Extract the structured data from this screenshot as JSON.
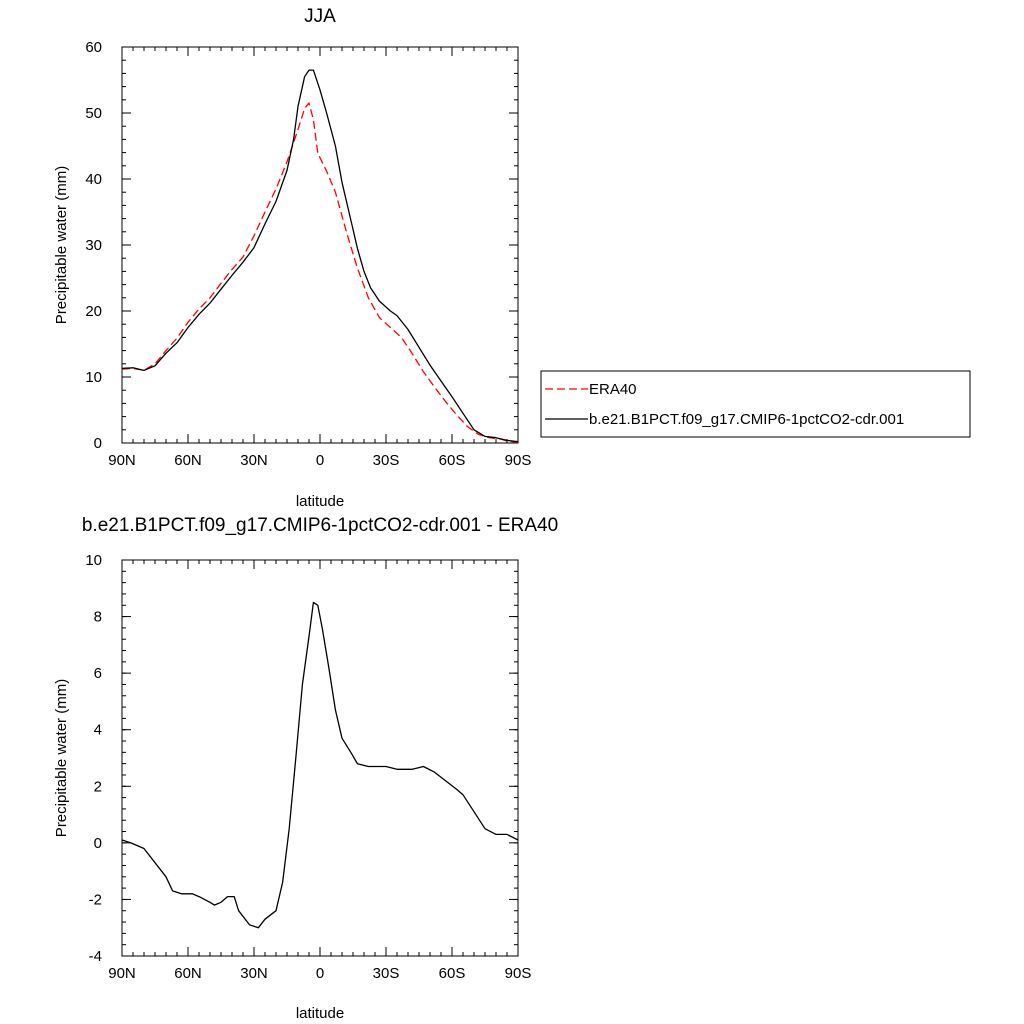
{
  "chart_data": [
    {
      "type": "line",
      "title": "JJA",
      "xlabel": "latitude",
      "ylabel": "Precipitable water (mm)",
      "xlim": [
        90,
        -90
      ],
      "ylim": [
        0,
        60
      ],
      "x_ticks": [
        90,
        60,
        30,
        0,
        -30,
        -60,
        -90
      ],
      "x_tick_labels": [
        "90N",
        "60N",
        "30N",
        "0",
        "30S",
        "60S",
        "90S"
      ],
      "y_ticks": [
        0,
        10,
        20,
        30,
        40,
        50,
        60
      ],
      "y_tick_labels": [
        "0",
        "10",
        "20",
        "30",
        "40",
        "50",
        "60"
      ],
      "grid": false,
      "legend_position": "right",
      "series": [
        {
          "name": "ERA40",
          "color": "#ff0000",
          "dash": "dashed",
          "points": [
            [
              90,
              11.2
            ],
            [
              85,
              11.3
            ],
            [
              80,
              11.0
            ],
            [
              75,
              12.0
            ],
            [
              70,
              14.0
            ],
            [
              65,
              15.9
            ],
            [
              60,
              18.3
            ],
            [
              55,
              20.3
            ],
            [
              50,
              22.0
            ],
            [
              45,
              24.2
            ],
            [
              40,
              26.3
            ],
            [
              35,
              28.2
            ],
            [
              30,
              31.4
            ],
            [
              25,
              35.0
            ],
            [
              20,
              38.5
            ],
            [
              15,
              42.6
            ],
            [
              10,
              47.5
            ],
            [
              7,
              50.7
            ],
            [
              5,
              51.5
            ],
            [
              3,
              49.0
            ],
            [
              1,
              43.9
            ],
            [
              -3,
              41.2
            ],
            [
              -7,
              38.0
            ],
            [
              -12,
              32.0
            ],
            [
              -17,
              26.5
            ],
            [
              -22,
              22.0
            ],
            [
              -27,
              19.0
            ],
            [
              -32,
              17.5
            ],
            [
              -37,
              16.0
            ],
            [
              -42,
              13.5
            ],
            [
              -47,
              10.8
            ],
            [
              -52,
              8.5
            ],
            [
              -57,
              6.3
            ],
            [
              -62,
              4.3
            ],
            [
              -67,
              2.5
            ],
            [
              -72,
              1.3
            ],
            [
              -77,
              0.8
            ],
            [
              -82,
              0.6
            ],
            [
              -85,
              0.3
            ],
            [
              -90,
              0.1
            ]
          ]
        },
        {
          "name": "b.e21.B1PCT.f09_g17.CMIP6-1pctCO2-cdr.001",
          "color": "#000000",
          "dash": "solid",
          "points": [
            [
              90,
              11.3
            ],
            [
              85,
              11.4
            ],
            [
              80,
              11.0
            ],
            [
              75,
              11.7
            ],
            [
              70,
              13.6
            ],
            [
              65,
              15.2
            ],
            [
              60,
              17.5
            ],
            [
              55,
              19.5
            ],
            [
              50,
              21.2
            ],
            [
              45,
              23.3
            ],
            [
              40,
              25.4
            ],
            [
              35,
              27.4
            ],
            [
              30,
              29.6
            ],
            [
              25,
              33.2
            ],
            [
              20,
              36.6
            ],
            [
              15,
              41.3
            ],
            [
              12,
              46.0
            ],
            [
              10,
              51.0
            ],
            [
              7,
              55.5
            ],
            [
              5,
              56.5
            ],
            [
              3,
              56.5
            ],
            [
              0,
              53.5
            ],
            [
              -3,
              50.0
            ],
            [
              -7,
              45.0
            ],
            [
              -10,
              39.5
            ],
            [
              -14,
              33.8
            ],
            [
              -17,
              29.5
            ],
            [
              -20,
              26.0
            ],
            [
              -23,
              23.5
            ],
            [
              -27,
              21.5
            ],
            [
              -32,
              20.0
            ],
            [
              -35,
              19.3
            ],
            [
              -40,
              17.2
            ],
            [
              -45,
              14.5
            ],
            [
              -50,
              11.8
            ],
            [
              -55,
              9.4
            ],
            [
              -60,
              7.0
            ],
            [
              -65,
              4.5
            ],
            [
              -70,
              2.0
            ],
            [
              -75,
              1.0
            ],
            [
              -80,
              0.8
            ],
            [
              -85,
              0.4
            ],
            [
              -90,
              0.2
            ]
          ]
        }
      ],
      "legend": [
        {
          "label": "ERA40"
        },
        {
          "label": "b.e21.B1PCT.f09_g17.CMIP6-1pctCO2-cdr.001"
        }
      ]
    },
    {
      "type": "line",
      "title": "b.e21.B1PCT.f09_g17.CMIP6-1pctCO2-cdr.001 - ERA40",
      "xlabel": "latitude",
      "ylabel": "Precipitable water (mm)",
      "xlim": [
        90,
        -90
      ],
      "ylim": [
        -4,
        10
      ],
      "x_ticks": [
        90,
        60,
        30,
        0,
        -30,
        -60,
        -90
      ],
      "x_tick_labels": [
        "90N",
        "60N",
        "30N",
        "0",
        "30S",
        "60S",
        "90S"
      ],
      "y_ticks": [
        -4,
        -2,
        0,
        2,
        4,
        6,
        8,
        10
      ],
      "y_tick_labels": [
        "-4",
        "-2",
        "0",
        "2",
        "4",
        "6",
        "8",
        "10"
      ],
      "grid": false,
      "series": [
        {
          "color": "#000000",
          "dash": "solid",
          "points": [
            [
              90,
              0.1
            ],
            [
              86,
              0.0
            ],
            [
              80,
              -0.2
            ],
            [
              75,
              -0.7
            ],
            [
              70,
              -1.2
            ],
            [
              67,
              -1.7
            ],
            [
              63,
              -1.8
            ],
            [
              58,
              -1.8
            ],
            [
              55,
              -1.9
            ],
            [
              50,
              -2.1
            ],
            [
              48,
              -2.2
            ],
            [
              45,
              -2.1
            ],
            [
              42,
              -1.9
            ],
            [
              39,
              -1.9
            ],
            [
              37,
              -2.4
            ],
            [
              32,
              -2.9
            ],
            [
              28,
              -3.0
            ],
            [
              25,
              -2.7
            ],
            [
              20,
              -2.4
            ],
            [
              17,
              -1.4
            ],
            [
              14,
              0.5
            ],
            [
              11,
              3.0
            ],
            [
              8,
              5.6
            ],
            [
              5,
              7.3
            ],
            [
              3,
              8.5
            ],
            [
              1,
              8.4
            ],
            [
              -1,
              7.6
            ],
            [
              -4,
              6.2
            ],
            [
              -7,
              4.7
            ],
            [
              -10,
              3.7
            ],
            [
              -14,
              3.2
            ],
            [
              -17,
              2.8
            ],
            [
              -22,
              2.7
            ],
            [
              -27,
              2.7
            ],
            [
              -30,
              2.7
            ],
            [
              -35,
              2.6
            ],
            [
              -42,
              2.6
            ],
            [
              -47,
              2.7
            ],
            [
              -52,
              2.5
            ],
            [
              -57,
              2.2
            ],
            [
              -62,
              1.9
            ],
            [
              -65,
              1.7
            ],
            [
              -70,
              1.1
            ],
            [
              -75,
              0.5
            ],
            [
              -80,
              0.3
            ],
            [
              -85,
              0.3
            ],
            [
              -90,
              0.1
            ]
          ]
        }
      ]
    }
  ]
}
